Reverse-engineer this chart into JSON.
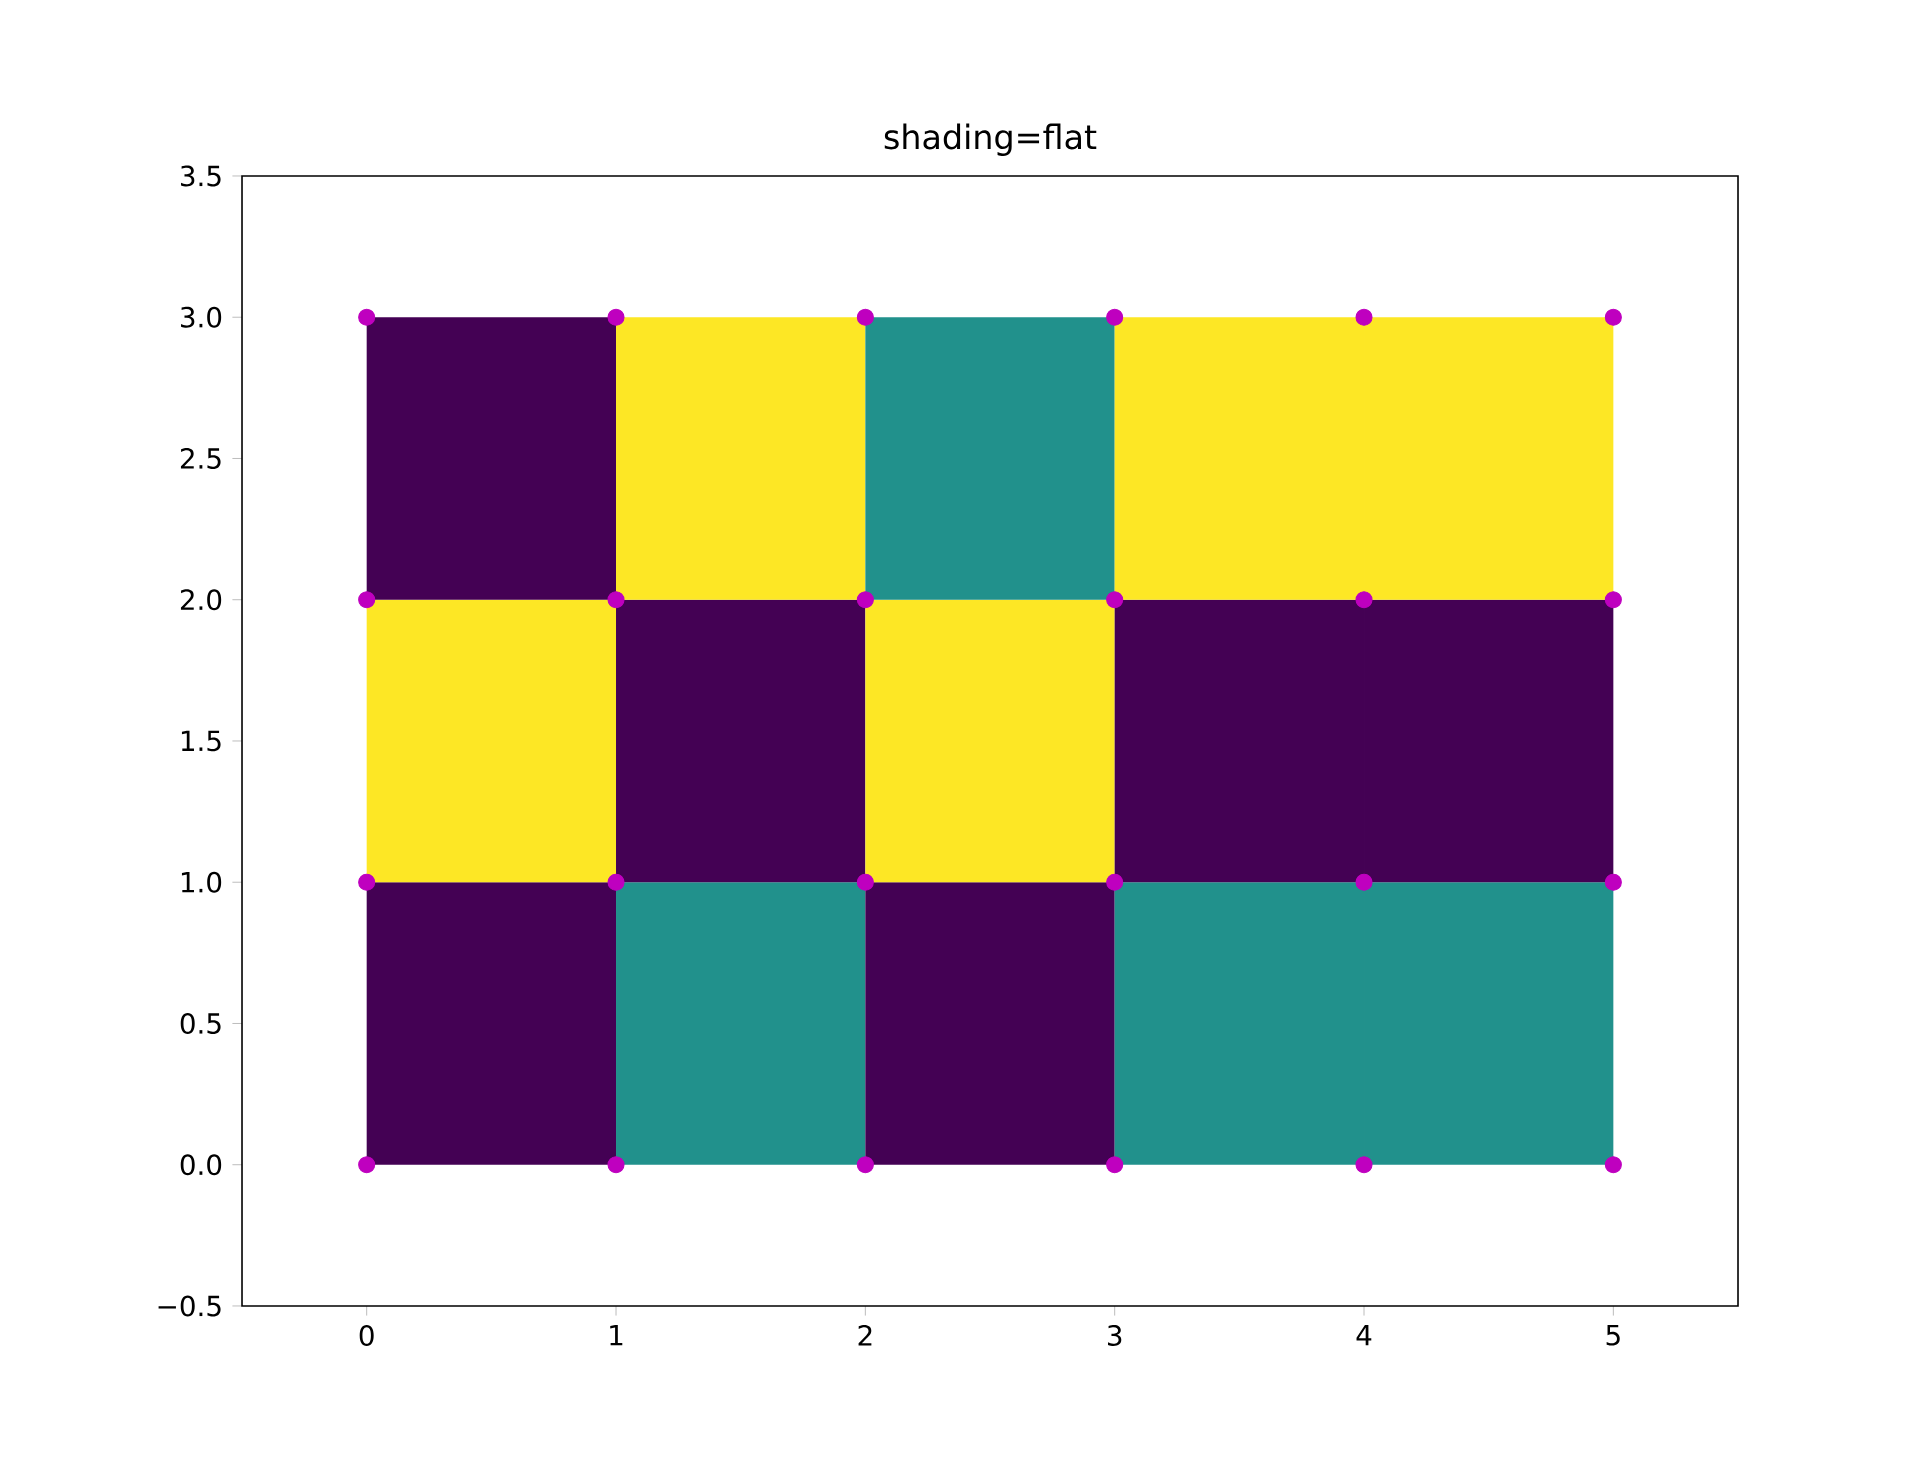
{
  "chart_data": {
    "type": "bar",
    "title": "shading=flat",
    "stacked": true,
    "x": [
      0.5,
      1.5,
      2.5,
      3.5,
      4.5
    ],
    "marker": "circle",
    "xlim": [
      -0.5,
      5.5
    ],
    "ylim": [
      -0.5,
      3.5
    ],
    "xticks": [
      0,
      1,
      2,
      3,
      4,
      5
    ],
    "yticks": [
      {
        "value": -0.5,
        "label": "−0.5"
      },
      {
        "value": 0,
        "label": "0.0"
      },
      {
        "value": 0.5,
        "label": "0.5"
      },
      {
        "value": 1,
        "label": "1.0"
      },
      {
        "value": 1.5,
        "label": "1.5"
      },
      {
        "value": 2,
        "label": "2.0"
      },
      {
        "value": 2.5,
        "label": "2.5"
      },
      {
        "value": 3,
        "label": "3.0"
      },
      {
        "value": 3.5,
        "label": "3.5"
      }
    ],
    "series": [
      {
        "values": [
          1,
          1,
          1,
          1,
          1
        ],
        "colors": [
          "#440154",
          "#21918c",
          "#440154",
          "#21918c",
          "#21918c"
        ]
      },
      {
        "values": [
          1,
          1,
          1,
          1,
          1
        ],
        "colors": [
          "#fde725",
          "#440154",
          "#fde725",
          "#440154",
          "#440154"
        ]
      },
      {
        "values": [
          1,
          1,
          1,
          1,
          1
        ],
        "colors": [
          "#440154",
          "#fde725",
          "#21918c",
          "#fde725",
          "#fde725"
        ]
      },
      {
        "type": "scatter",
        "color": "#bf00bf",
        "x": [
          0,
          1,
          2,
          3,
          4,
          5,
          0,
          1,
          2,
          3,
          4,
          5,
          0,
          1,
          2,
          3,
          4,
          5,
          0,
          1,
          2,
          3,
          4,
          5
        ],
        "values": [
          0,
          0,
          0,
          0,
          0,
          0,
          1,
          1,
          1,
          1,
          1,
          1,
          2,
          2,
          2,
          2,
          2,
          2,
          3,
          3,
          3,
          3,
          3,
          3
        ]
      }
    ]
  }
}
